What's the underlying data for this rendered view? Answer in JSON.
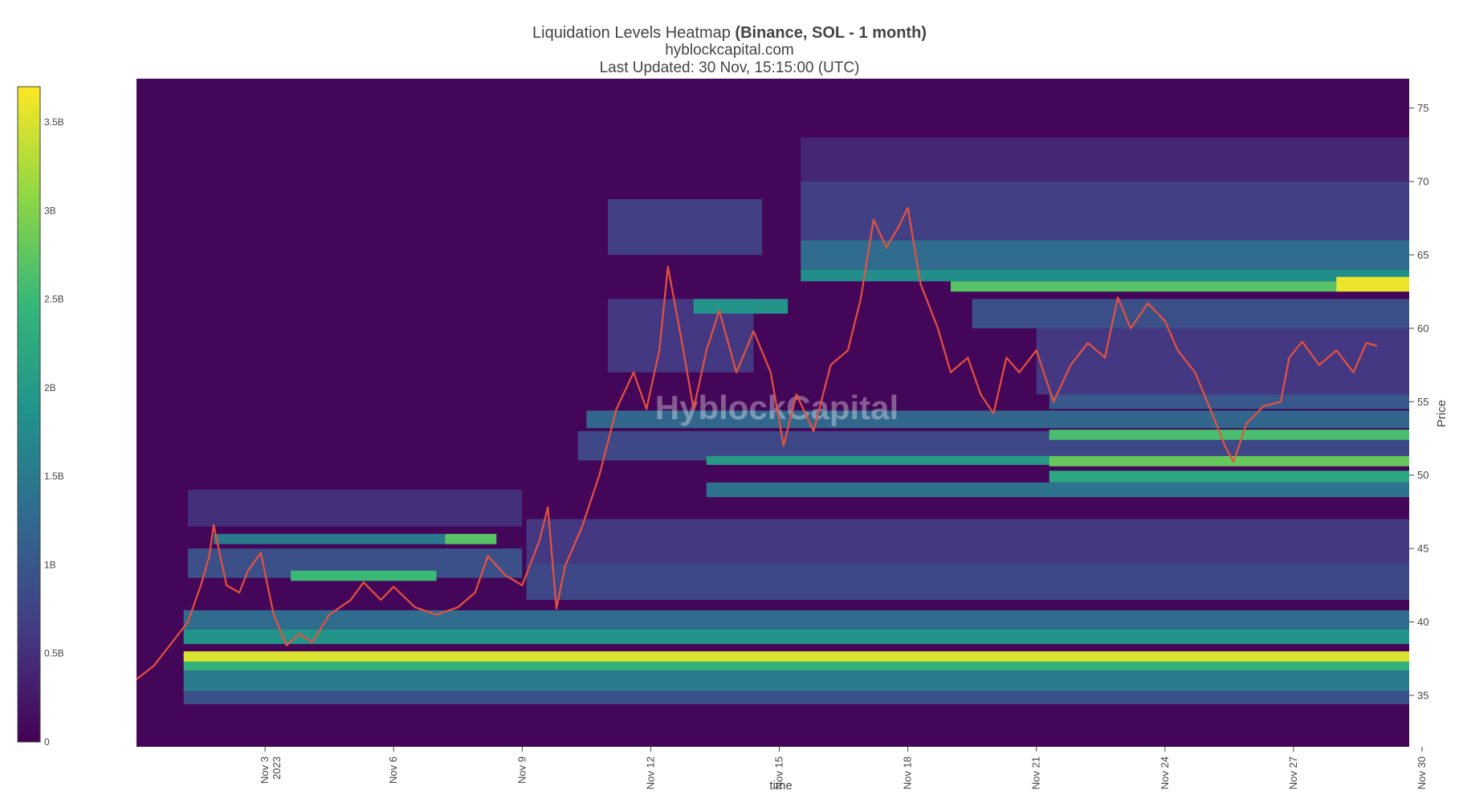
{
  "title": {
    "main": "Liquidation Levels Heatmap",
    "bold": "(Binance, SOL - 1 month)",
    "site": "hyblockcapital.com",
    "updated": "Last Updated: 30 Nov, 15:15:00 (UTC)"
  },
  "watermark": "HyblockCapital",
  "chart_data": {
    "type": "heatmap",
    "xlabel": "time",
    "ylabel": "Price",
    "ylim": [
      31.5,
      77
    ],
    "y_ticks": [
      35,
      40,
      45,
      50,
      55,
      60,
      65,
      70,
      75
    ],
    "x_range_days": [
      0.0,
      29.7
    ],
    "x_ticks": [
      {
        "label": "Nov 3",
        "sub": "2023",
        "day": 3
      },
      {
        "label": "Nov 6",
        "sub": "",
        "day": 6
      },
      {
        "label": "Nov 9",
        "sub": "",
        "day": 9
      },
      {
        "label": "Nov 12",
        "sub": "",
        "day": 12
      },
      {
        "label": "Nov 15",
        "sub": "",
        "day": 15
      },
      {
        "label": "Nov 18",
        "sub": "",
        "day": 18
      },
      {
        "label": "Nov 21",
        "sub": "",
        "day": 21
      },
      {
        "label": "Nov 24",
        "sub": "",
        "day": 24
      },
      {
        "label": "Nov 27",
        "sub": "",
        "day": 27
      },
      {
        "label": "Nov 30",
        "sub": "",
        "day": 30
      }
    ],
    "colorbar": {
      "min": 0,
      "max": 3.7,
      "ticks": [
        {
          "label": "0",
          "v": 0
        },
        {
          "label": "0.5B",
          "v": 0.5
        },
        {
          "label": "1B",
          "v": 1
        },
        {
          "label": "1.5B",
          "v": 1.5
        },
        {
          "label": "2B",
          "v": 2
        },
        {
          "label": "2.5B",
          "v": 2.5
        },
        {
          "label": "3B",
          "v": 3
        },
        {
          "label": "3.5B",
          "v": 3.5
        }
      ],
      "colors": [
        "#440154",
        "#443a83",
        "#31688e",
        "#21918c",
        "#35b779",
        "#8fd744",
        "#fde725"
      ]
    },
    "background_value": 0.05,
    "bands": [
      {
        "from": 1.1,
        "to": 29.7,
        "y0": 37.3,
        "y1": 38.0,
        "v": 3.5
      },
      {
        "from": 1.1,
        "to": 29.7,
        "y0": 36.7,
        "y1": 37.3,
        "v": 2.4
      },
      {
        "from": 1.1,
        "to": 29.7,
        "y0": 35.3,
        "y1": 36.7,
        "v": 1.5
      },
      {
        "from": 1.1,
        "to": 29.7,
        "y0": 34.4,
        "y1": 35.3,
        "v": 0.9
      },
      {
        "from": 1.1,
        "to": 29.7,
        "y0": 38.5,
        "y1": 39.5,
        "v": 1.9
      },
      {
        "from": 1.1,
        "to": 29.7,
        "y0": 39.5,
        "y1": 40.8,
        "v": 1.3
      },
      {
        "from": 9.1,
        "to": 29.7,
        "y0": 41.5,
        "y1": 44.0,
        "v": 0.8
      },
      {
        "from": 9.1,
        "to": 29.7,
        "y0": 44.0,
        "y1": 47.0,
        "v": 0.6
      },
      {
        "from": 1.2,
        "to": 9.0,
        "y0": 43.0,
        "y1": 45.0,
        "v": 0.9
      },
      {
        "from": 1.8,
        "to": 7.2,
        "y0": 45.3,
        "y1": 46.0,
        "v": 1.5
      },
      {
        "from": 7.2,
        "to": 8.4,
        "y0": 45.3,
        "y1": 46.0,
        "v": 2.7
      },
      {
        "from": 3.6,
        "to": 7.0,
        "y0": 42.8,
        "y1": 43.5,
        "v": 2.5
      },
      {
        "from": 1.2,
        "to": 9.0,
        "y0": 46.5,
        "y1": 49.0,
        "v": 0.5
      },
      {
        "from": 11.0,
        "to": 14.4,
        "y0": 57.0,
        "y1": 62.0,
        "v": 0.6
      },
      {
        "from": 11.0,
        "to": 14.6,
        "y0": 65.0,
        "y1": 68.8,
        "v": 0.7
      },
      {
        "from": 10.3,
        "to": 29.7,
        "y0": 51.0,
        "y1": 53.0,
        "v": 0.8
      },
      {
        "from": 13.3,
        "to": 29.7,
        "y0": 50.7,
        "y1": 51.3,
        "v": 2.0
      },
      {
        "from": 21.3,
        "to": 29.7,
        "y0": 50.6,
        "y1": 51.3,
        "v": 2.8
      },
      {
        "from": 21.3,
        "to": 29.7,
        "y0": 49.5,
        "y1": 50.3,
        "v": 2.2
      },
      {
        "from": 13.3,
        "to": 29.7,
        "y0": 48.5,
        "y1": 49.5,
        "v": 1.4
      },
      {
        "from": 10.5,
        "to": 29.7,
        "y0": 53.2,
        "y1": 54.4,
        "v": 1.2
      },
      {
        "from": 21.3,
        "to": 29.7,
        "y0": 52.4,
        "y1": 53.1,
        "v": 2.6
      },
      {
        "from": 21.3,
        "to": 29.7,
        "y0": 54.5,
        "y1": 55.5,
        "v": 1.0
      },
      {
        "from": 15.5,
        "to": 29.7,
        "y0": 63.2,
        "y1": 64.0,
        "v": 1.8
      },
      {
        "from": 19.0,
        "to": 29.7,
        "y0": 62.5,
        "y1": 63.2,
        "v": 2.7
      },
      {
        "from": 28.0,
        "to": 29.7,
        "y0": 62.5,
        "y1": 63.5,
        "v": 3.6
      },
      {
        "from": 15.5,
        "to": 29.7,
        "y0": 64.0,
        "y1": 66.0,
        "v": 1.3
      },
      {
        "from": 15.5,
        "to": 29.7,
        "y0": 66.0,
        "y1": 70.0,
        "v": 0.7
      },
      {
        "from": 15.5,
        "to": 29.7,
        "y0": 70.0,
        "y1": 73.0,
        "v": 0.4
      },
      {
        "from": 19.5,
        "to": 29.7,
        "y0": 60.0,
        "y1": 62.0,
        "v": 0.9
      },
      {
        "from": 13.0,
        "to": 15.2,
        "y0": 61.0,
        "y1": 62.0,
        "v": 1.9
      },
      {
        "from": 21.0,
        "to": 29.7,
        "y0": 55.5,
        "y1": 60.0,
        "v": 0.6
      }
    ],
    "price_path": [
      {
        "x": 0.0,
        "y": 36.1
      },
      {
        "x": 0.4,
        "y": 37.0
      },
      {
        "x": 0.8,
        "y": 38.5
      },
      {
        "x": 1.2,
        "y": 40.0
      },
      {
        "x": 1.5,
        "y": 42.5
      },
      {
        "x": 1.7,
        "y": 44.5
      },
      {
        "x": 1.8,
        "y": 46.6
      },
      {
        "x": 2.1,
        "y": 42.5
      },
      {
        "x": 2.4,
        "y": 42.0
      },
      {
        "x": 2.6,
        "y": 43.5
      },
      {
        "x": 2.9,
        "y": 44.7
      },
      {
        "x": 3.2,
        "y": 40.5
      },
      {
        "x": 3.5,
        "y": 38.4
      },
      {
        "x": 3.8,
        "y": 39.2
      },
      {
        "x": 4.1,
        "y": 38.6
      },
      {
        "x": 4.5,
        "y": 40.5
      },
      {
        "x": 5.0,
        "y": 41.5
      },
      {
        "x": 5.3,
        "y": 42.7
      },
      {
        "x": 5.7,
        "y": 41.5
      },
      {
        "x": 6.0,
        "y": 42.4
      },
      {
        "x": 6.5,
        "y": 41.0
      },
      {
        "x": 7.0,
        "y": 40.5
      },
      {
        "x": 7.5,
        "y": 41.0
      },
      {
        "x": 7.9,
        "y": 42.0
      },
      {
        "x": 8.2,
        "y": 44.5
      },
      {
        "x": 8.6,
        "y": 43.2
      },
      {
        "x": 9.0,
        "y": 42.5
      },
      {
        "x": 9.4,
        "y": 45.5
      },
      {
        "x": 9.6,
        "y": 47.8
      },
      {
        "x": 9.8,
        "y": 40.9
      },
      {
        "x": 10.0,
        "y": 43.8
      },
      {
        "x": 10.4,
        "y": 46.5
      },
      {
        "x": 10.8,
        "y": 50.0
      },
      {
        "x": 11.2,
        "y": 54.5
      },
      {
        "x": 11.6,
        "y": 57.0
      },
      {
        "x": 11.9,
        "y": 54.5
      },
      {
        "x": 12.2,
        "y": 58.5
      },
      {
        "x": 12.4,
        "y": 64.2
      },
      {
        "x": 12.7,
        "y": 59.5
      },
      {
        "x": 13.0,
        "y": 54.5
      },
      {
        "x": 13.3,
        "y": 58.5
      },
      {
        "x": 13.6,
        "y": 61.2
      },
      {
        "x": 14.0,
        "y": 57.0
      },
      {
        "x": 14.4,
        "y": 59.8
      },
      {
        "x": 14.8,
        "y": 57.0
      },
      {
        "x": 15.1,
        "y": 52.0
      },
      {
        "x": 15.4,
        "y": 55.5
      },
      {
        "x": 15.8,
        "y": 53.0
      },
      {
        "x": 16.2,
        "y": 57.5
      },
      {
        "x": 16.6,
        "y": 58.5
      },
      {
        "x": 16.9,
        "y": 62.0
      },
      {
        "x": 17.2,
        "y": 67.4
      },
      {
        "x": 17.5,
        "y": 65.5
      },
      {
        "x": 17.8,
        "y": 67.0
      },
      {
        "x": 18.0,
        "y": 68.2
      },
      {
        "x": 18.3,
        "y": 63.0
      },
      {
        "x": 18.7,
        "y": 60.0
      },
      {
        "x": 19.0,
        "y": 57.0
      },
      {
        "x": 19.4,
        "y": 58.0
      },
      {
        "x": 19.7,
        "y": 55.5
      },
      {
        "x": 20.0,
        "y": 54.2
      },
      {
        "x": 20.3,
        "y": 58.0
      },
      {
        "x": 20.6,
        "y": 57.0
      },
      {
        "x": 21.0,
        "y": 58.5
      },
      {
        "x": 21.4,
        "y": 55.0
      },
      {
        "x": 21.8,
        "y": 57.5
      },
      {
        "x": 22.2,
        "y": 59.0
      },
      {
        "x": 22.6,
        "y": 58.0
      },
      {
        "x": 22.9,
        "y": 62.1
      },
      {
        "x": 23.2,
        "y": 60.0
      },
      {
        "x": 23.6,
        "y": 61.7
      },
      {
        "x": 24.0,
        "y": 60.5
      },
      {
        "x": 24.3,
        "y": 58.5
      },
      {
        "x": 24.7,
        "y": 57.0
      },
      {
        "x": 25.1,
        "y": 54.2
      },
      {
        "x": 25.4,
        "y": 52.0
      },
      {
        "x": 25.6,
        "y": 50.9
      },
      {
        "x": 25.9,
        "y": 53.5
      },
      {
        "x": 26.3,
        "y": 54.7
      },
      {
        "x": 26.7,
        "y": 55.0
      },
      {
        "x": 26.9,
        "y": 58.0
      },
      {
        "x": 27.2,
        "y": 59.1
      },
      {
        "x": 27.6,
        "y": 57.5
      },
      {
        "x": 28.0,
        "y": 58.5
      },
      {
        "x": 28.4,
        "y": 57.0
      },
      {
        "x": 28.7,
        "y": 59.0
      },
      {
        "x": 28.95,
        "y": 58.8
      }
    ]
  }
}
